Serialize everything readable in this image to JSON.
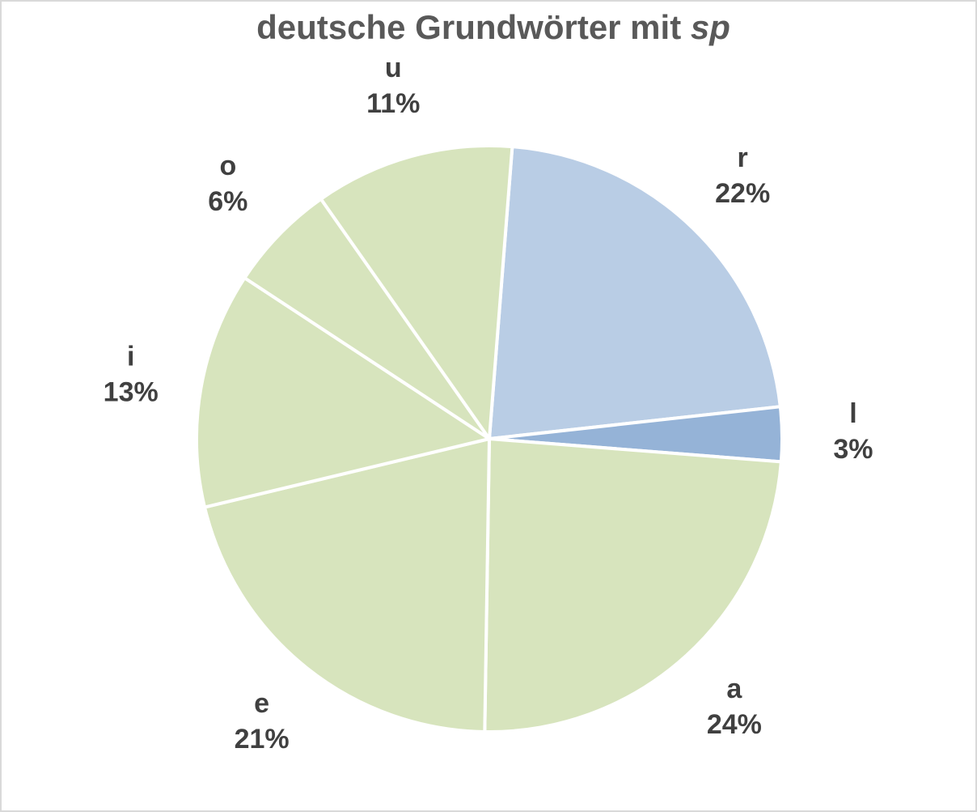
{
  "chart_data": {
    "type": "pie",
    "title": "deutsche Grundwörter mit",
    "title_emphasis": "sp",
    "categories": [
      "r",
      "l",
      "a",
      "e",
      "i",
      "o",
      "u"
    ],
    "values": [
      22,
      3,
      24,
      21,
      13,
      6,
      11
    ],
    "value_labels": [
      "22%",
      "3%",
      "24%",
      "21%",
      "13%",
      "6%",
      "11%"
    ],
    "colors": [
      "#b9cde5",
      "#95b3d7",
      "#d7e4bd",
      "#d7e4bd",
      "#d7e4bd",
      "#d7e4bd",
      "#d7e4bd"
    ],
    "start_angle": 4.5
  }
}
